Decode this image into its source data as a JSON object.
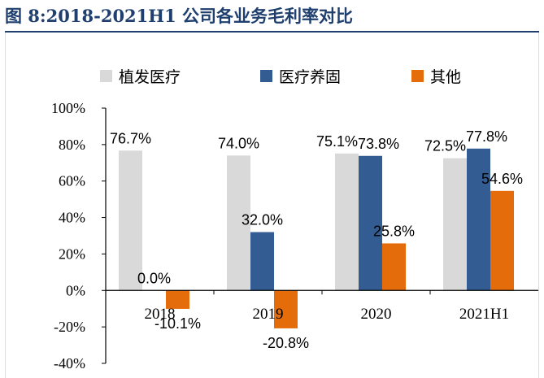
{
  "figure_title": "图 8:2018-2021H1 公司各业务毛利率对比",
  "colors": {
    "title": "#1f3f6e",
    "axis": "#000000"
  },
  "chart_data": {
    "type": "bar",
    "categories": [
      "2018",
      "2019",
      "2020",
      "2021H1"
    ],
    "series": [
      {
        "name": "植发医疗",
        "color": "#d9d9d9",
        "values": [
          76.7,
          74.0,
          75.1,
          72.5
        ],
        "labels": [
          "76.7%",
          "74.0%",
          "75.1%",
          "72.5%"
        ]
      },
      {
        "name": "医疗养固",
        "color": "#335c92",
        "values": [
          0.0,
          32.0,
          73.8,
          77.8
        ],
        "labels": [
          "0.0%",
          "32.0%",
          "73.8%",
          "77.8%"
        ]
      },
      {
        "name": "其他",
        "color": "#e46c0a",
        "values": [
          -10.1,
          -20.8,
          25.8,
          54.6
        ],
        "labels": [
          "-10.1%",
          "-20.8%",
          "25.8%",
          "54.6%"
        ]
      }
    ],
    "ylim": [
      -40,
      100
    ],
    "yticks": [
      100,
      80,
      60,
      40,
      20,
      0,
      -20,
      -40
    ],
    "ytick_labels": [
      "100%",
      "80%",
      "60%",
      "40%",
      "20%",
      "0%",
      "-20%",
      "-40%"
    ],
    "legend_position": "top",
    "grid": false
  }
}
